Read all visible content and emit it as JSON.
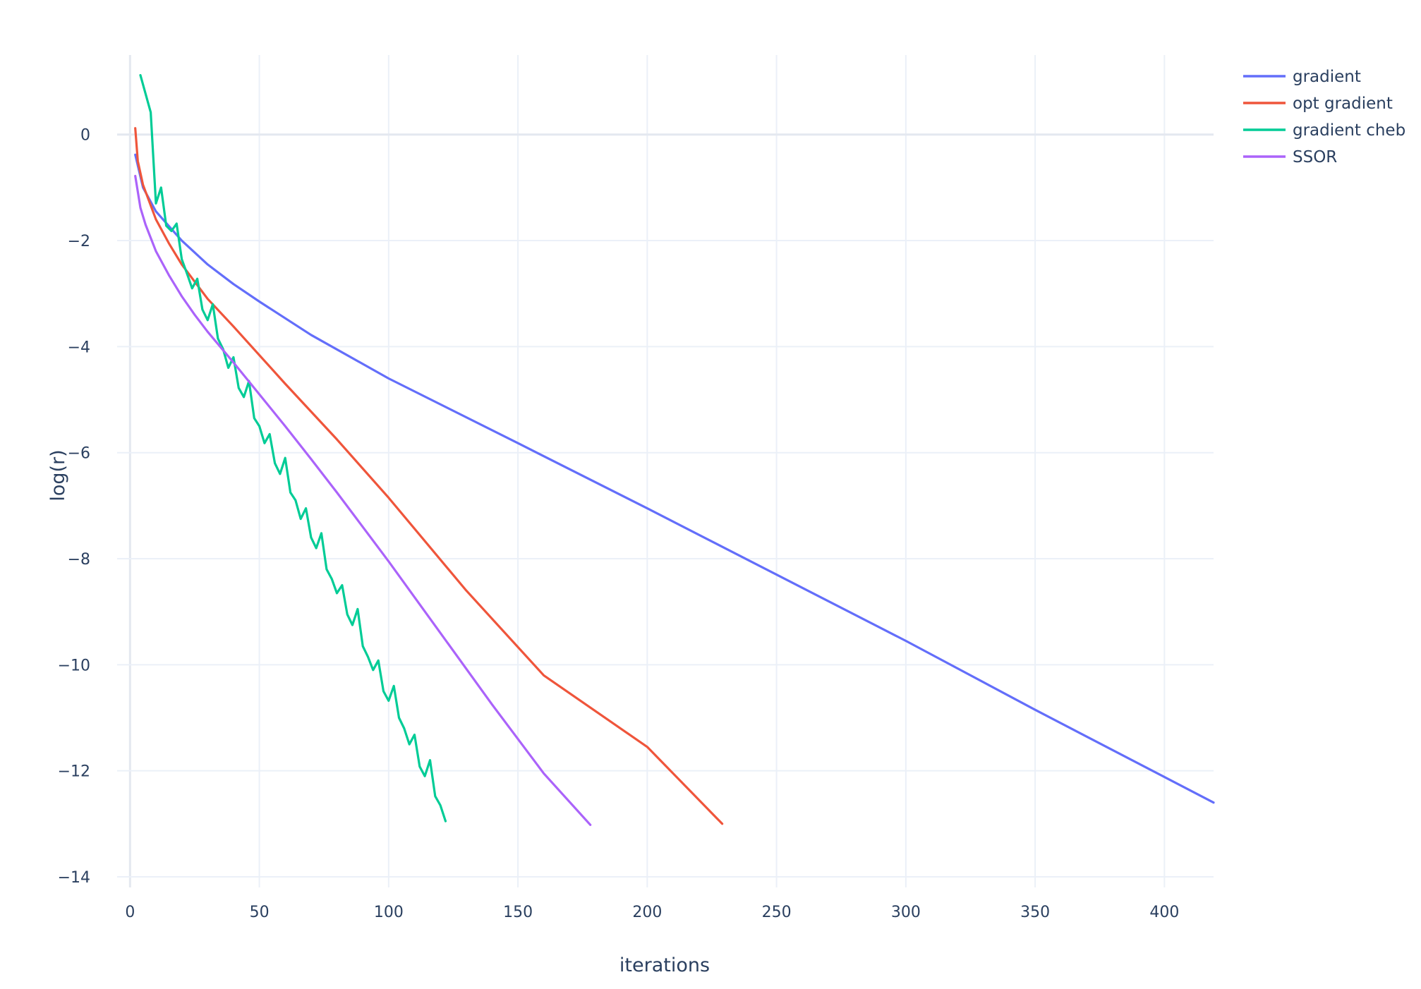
{
  "chart_data": {
    "type": "line",
    "xlabel": "iterations",
    "ylabel": "log(r)",
    "xlim": [
      -5,
      419
    ],
    "ylim": [
      -14.2,
      1.5
    ],
    "xticks": [
      0,
      50,
      100,
      150,
      200,
      250,
      300,
      350,
      400
    ],
    "yticks": [
      0,
      -2,
      -4,
      -6,
      -8,
      -10,
      -12,
      -14
    ],
    "tick_labels_x": [
      "0",
      "50",
      "100",
      "150",
      "200",
      "250",
      "300",
      "350",
      "400"
    ],
    "tick_labels_y": [
      "0",
      "−2",
      "−4",
      "−6",
      "−8",
      "−10",
      "−12",
      "−14"
    ],
    "grid": true,
    "legend_position": "top-right",
    "series": [
      {
        "name": "gradient",
        "color": "#636efa",
        "x": [
          2,
          5,
          10,
          20,
          30,
          40,
          50,
          70,
          100,
          150,
          200,
          250,
          300,
          350,
          419
        ],
        "y": [
          -0.38,
          -1.0,
          -1.45,
          -2.0,
          -2.45,
          -2.82,
          -3.15,
          -3.78,
          -4.6,
          -5.82,
          -7.05,
          -8.3,
          -9.55,
          -10.85,
          -12.6
        ]
      },
      {
        "name": "opt gradient",
        "color": "#ef553b",
        "x": [
          2,
          3,
          5,
          10,
          15,
          20,
          30,
          40,
          60,
          80,
          100,
          130,
          160,
          200,
          229
        ],
        "y": [
          0.12,
          -0.5,
          -0.95,
          -1.6,
          -2.05,
          -2.45,
          -3.1,
          -3.62,
          -4.7,
          -5.75,
          -6.85,
          -8.6,
          -10.2,
          -11.55,
          -13.0
        ]
      },
      {
        "name": "gradient cheb",
        "color": "#00cc96",
        "x": [
          4,
          8,
          10,
          12,
          14,
          16,
          18,
          20,
          22,
          24,
          26,
          28,
          30,
          32,
          34,
          36,
          38,
          40,
          42,
          44,
          46,
          48,
          50,
          52,
          54,
          56,
          58,
          60,
          62,
          64,
          66,
          68,
          70,
          72,
          74,
          76,
          78,
          80,
          82,
          84,
          86,
          88,
          90,
          92,
          94,
          96,
          98,
          100,
          102,
          104,
          106,
          108,
          110,
          112,
          114,
          116,
          118,
          120,
          122
        ],
        "y": [
          1.12,
          0.42,
          -1.3,
          -1.0,
          -1.72,
          -1.82,
          -1.68,
          -2.35,
          -2.62,
          -2.9,
          -2.72,
          -3.3,
          -3.5,
          -3.2,
          -3.85,
          -4.05,
          -4.4,
          -4.2,
          -4.78,
          -4.95,
          -4.65,
          -5.35,
          -5.5,
          -5.82,
          -5.65,
          -6.2,
          -6.4,
          -6.1,
          -6.75,
          -6.9,
          -7.25,
          -7.05,
          -7.6,
          -7.8,
          -7.52,
          -8.2,
          -8.38,
          -8.65,
          -8.5,
          -9.05,
          -9.25,
          -8.95,
          -9.65,
          -9.85,
          -10.1,
          -9.92,
          -10.5,
          -10.68,
          -10.4,
          -11.0,
          -11.2,
          -11.5,
          -11.32,
          -11.92,
          -12.1,
          -11.8,
          -12.48,
          -12.65,
          -12.95
        ]
      },
      {
        "name": "SSOR",
        "color": "#ab63fa",
        "x": [
          2,
          4,
          6,
          10,
          15,
          20,
          25,
          30,
          40,
          50,
          60,
          70,
          80,
          100,
          120,
          140,
          160,
          178
        ],
        "y": [
          -0.78,
          -1.38,
          -1.7,
          -2.2,
          -2.65,
          -3.05,
          -3.4,
          -3.72,
          -4.3,
          -4.9,
          -5.5,
          -6.12,
          -6.75,
          -8.05,
          -9.4,
          -10.75,
          -12.05,
          -13.02
        ]
      }
    ]
  }
}
